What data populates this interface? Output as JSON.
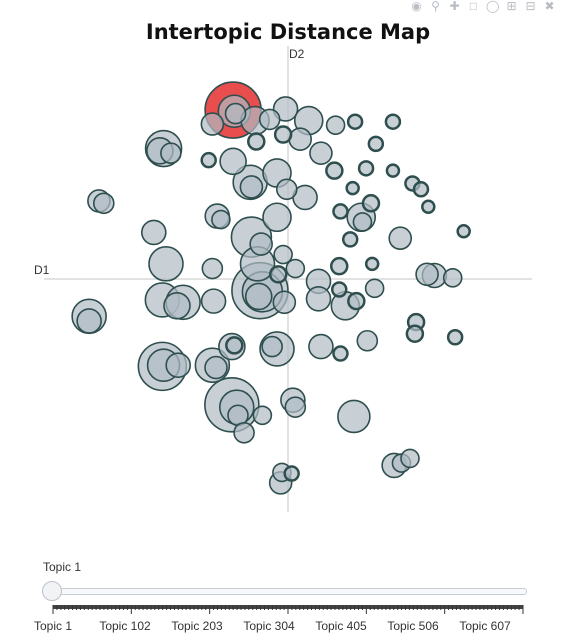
{
  "title": "Intertopic Distance Map",
  "toolbar": {
    "icons": [
      "camera-icon",
      "zoom-icon",
      "pan-icon",
      "box-select-icon",
      "lasso-icon",
      "zoom-in-icon",
      "zoom-out-icon",
      "autoscale-icon"
    ]
  },
  "colors": {
    "bubble_fill": "#b0bcc5",
    "bubble_stroke": "#2f4f4f",
    "selected": "#e84444",
    "axis": "#d9d9d9"
  },
  "slider": {
    "label": "Topic 1",
    "tick_labels": [
      "Topic 1",
      "Topic 102",
      "Topic 203",
      "Topic 304",
      "Topic 405",
      "Topic 506",
      "Topic 607"
    ]
  },
  "chart_data": {
    "type": "scatter",
    "title": "Intertopic Distance Map",
    "xlabel": "D1",
    "ylabel": "D2",
    "xlim": [
      -10,
      10
    ],
    "ylim": [
      -10,
      10
    ],
    "grid": false,
    "selected_topic": "Topic 1",
    "points": [
      {
        "x": -2.25,
        "y": 7.25,
        "r": 28,
        "selected": true
      },
      {
        "x": -2.2,
        "y": 7.2,
        "r": 16
      },
      {
        "x": -2.15,
        "y": 7.1,
        "r": 10
      },
      {
        "x": -0.1,
        "y": 7.3,
        "r": 12
      },
      {
        "x": 0.85,
        "y": 6.8,
        "r": 14
      },
      {
        "x": 1.95,
        "y": 6.6,
        "r": 9
      },
      {
        "x": 2.75,
        "y": 6.75,
        "r": 7
      },
      {
        "x": 4.3,
        "y": 6.75,
        "r": 7
      },
      {
        "x": -1.35,
        "y": 6.8,
        "r": 14
      },
      {
        "x": -0.75,
        "y": 6.85,
        "r": 10
      },
      {
        "x": -3.1,
        "y": 6.65,
        "r": 11
      },
      {
        "x": -0.2,
        "y": 6.2,
        "r": 8
      },
      {
        "x": 0.5,
        "y": 6.0,
        "r": 11
      },
      {
        "x": -1.3,
        "y": 5.9,
        "r": 8
      },
      {
        "x": -5.1,
        "y": 5.6,
        "r": 18
      },
      {
        "x": -5.25,
        "y": 5.5,
        "r": 13
      },
      {
        "x": -4.8,
        "y": 5.4,
        "r": 10
      },
      {
        "x": 1.35,
        "y": 5.4,
        "r": 11
      },
      {
        "x": 3.6,
        "y": 5.8,
        "r": 7
      },
      {
        "x": -3.25,
        "y": 5.1,
        "r": 7
      },
      {
        "x": -2.25,
        "y": 5.05,
        "r": 13
      },
      {
        "x": -0.45,
        "y": 4.55,
        "r": 14
      },
      {
        "x": 1.9,
        "y": 4.65,
        "r": 8
      },
      {
        "x": 3.2,
        "y": 4.75,
        "r": 7
      },
      {
        "x": 4.3,
        "y": 4.65,
        "r": 6
      },
      {
        "x": -1.55,
        "y": 4.15,
        "r": 17
      },
      {
        "x": -1.5,
        "y": 3.95,
        "r": 11
      },
      {
        "x": -0.05,
        "y": 3.85,
        "r": 10
      },
      {
        "x": 0.7,
        "y": 3.5,
        "r": 12
      },
      {
        "x": 2.65,
        "y": 3.9,
        "r": 6
      },
      {
        "x": 5.1,
        "y": 4.1,
        "r": 7
      },
      {
        "x": 5.45,
        "y": 3.85,
        "r": 7
      },
      {
        "x": -7.75,
        "y": 3.35,
        "r": 11
      },
      {
        "x": -7.55,
        "y": 3.25,
        "r": 10
      },
      {
        "x": 3.4,
        "y": 3.25,
        "r": 8
      },
      {
        "x": 5.75,
        "y": 3.1,
        "r": 6
      },
      {
        "x": -2.9,
        "y": 2.7,
        "r": 12
      },
      {
        "x": -2.75,
        "y": 2.55,
        "r": 9
      },
      {
        "x": -0.45,
        "y": 2.65,
        "r": 14
      },
      {
        "x": 2.15,
        "y": 2.9,
        "r": 7
      },
      {
        "x": 3.0,
        "y": 2.65,
        "r": 14
      },
      {
        "x": 3.05,
        "y": 2.45,
        "r": 9
      },
      {
        "x": -5.5,
        "y": 2.0,
        "r": 12
      },
      {
        "x": -1.5,
        "y": 1.8,
        "r": 20
      },
      {
        "x": -1.1,
        "y": 1.5,
        "r": 11
      },
      {
        "x": -0.2,
        "y": 1.05,
        "r": 9
      },
      {
        "x": 2.55,
        "y": 1.7,
        "r": 7
      },
      {
        "x": 4.6,
        "y": 1.75,
        "r": 11
      },
      {
        "x": 7.2,
        "y": 2.05,
        "r": 6
      },
      {
        "x": -5.0,
        "y": 0.65,
        "r": 17
      },
      {
        "x": -3.1,
        "y": 0.45,
        "r": 10
      },
      {
        "x": -1.25,
        "y": 0.65,
        "r": 17
      },
      {
        "x": -0.4,
        "y": 0.2,
        "r": 8
      },
      {
        "x": 0.3,
        "y": 0.45,
        "r": 9
      },
      {
        "x": 2.1,
        "y": 0.55,
        "r": 8
      },
      {
        "x": 3.45,
        "y": 0.65,
        "r": 6
      },
      {
        "x": 5.7,
        "y": 0.2,
        "r": 11
      },
      {
        "x": 6.0,
        "y": 0.15,
        "r": 12
      },
      {
        "x": 6.75,
        "y": 0.05,
        "r": 9
      },
      {
        "x": -1.15,
        "y": -0.5,
        "r": 28
      },
      {
        "x": -1.05,
        "y": -0.55,
        "r": 20
      },
      {
        "x": -1.2,
        "y": -0.75,
        "r": 13
      },
      {
        "x": 1.25,
        "y": -0.1,
        "r": 12
      },
      {
        "x": 2.1,
        "y": -0.45,
        "r": 7
      },
      {
        "x": 3.55,
        "y": -0.4,
        "r": 9
      },
      {
        "x": -5.15,
        "y": -0.9,
        "r": 17
      },
      {
        "x": -4.3,
        "y": -1.0,
        "r": 17
      },
      {
        "x": -4.55,
        "y": -1.15,
        "r": 13
      },
      {
        "x": -3.05,
        "y": -0.95,
        "r": 12
      },
      {
        "x": -0.15,
        "y": -1.0,
        "r": 11
      },
      {
        "x": 1.25,
        "y": -0.85,
        "r": 12
      },
      {
        "x": 2.35,
        "y": -1.15,
        "r": 14
      },
      {
        "x": 2.8,
        "y": -0.95,
        "r": 8
      },
      {
        "x": -8.15,
        "y": -1.6,
        "r": 17
      },
      {
        "x": -8.15,
        "y": -1.8,
        "r": 12
      },
      {
        "x": 5.25,
        "y": -1.85,
        "r": 8
      },
      {
        "x": 5.2,
        "y": -2.35,
        "r": 8
      },
      {
        "x": 6.85,
        "y": -2.5,
        "r": 7
      },
      {
        "x": -2.3,
        "y": -2.9,
        "r": 13
      },
      {
        "x": -2.2,
        "y": -2.85,
        "r": 8
      },
      {
        "x": -0.45,
        "y": -3.0,
        "r": 17
      },
      {
        "x": -0.65,
        "y": -2.9,
        "r": 10
      },
      {
        "x": 1.35,
        "y": -2.9,
        "r": 12
      },
      {
        "x": 2.15,
        "y": -3.2,
        "r": 7
      },
      {
        "x": 3.25,
        "y": -2.65,
        "r": 10
      },
      {
        "x": -5.15,
        "y": -3.75,
        "r": 24
      },
      {
        "x": -5.1,
        "y": -3.7,
        "r": 16
      },
      {
        "x": -4.5,
        "y": -3.7,
        "r": 12
      },
      {
        "x": -3.1,
        "y": -3.7,
        "r": 17
      },
      {
        "x": -2.95,
        "y": -3.8,
        "r": 11
      },
      {
        "x": -2.3,
        "y": -5.4,
        "r": 27
      },
      {
        "x": -2.1,
        "y": -5.5,
        "r": 17
      },
      {
        "x": -2.05,
        "y": -5.85,
        "r": 10
      },
      {
        "x": -1.05,
        "y": -5.85,
        "r": 9
      },
      {
        "x": 0.2,
        "y": -5.2,
        "r": 12
      },
      {
        "x": 0.3,
        "y": -5.5,
        "r": 10
      },
      {
        "x": 2.7,
        "y": -5.9,
        "r": 16
      },
      {
        "x": -1.8,
        "y": -6.6,
        "r": 10
      },
      {
        "x": -0.25,
        "y": -8.3,
        "r": 9
      },
      {
        "x": -0.3,
        "y": -8.75,
        "r": 11
      },
      {
        "x": 0.15,
        "y": -8.35,
        "r": 7
      },
      {
        "x": 4.35,
        "y": -8.0,
        "r": 12
      },
      {
        "x": 4.65,
        "y": -7.9,
        "r": 9
      },
      {
        "x": 5.0,
        "y": -7.7,
        "r": 9
      }
    ]
  }
}
